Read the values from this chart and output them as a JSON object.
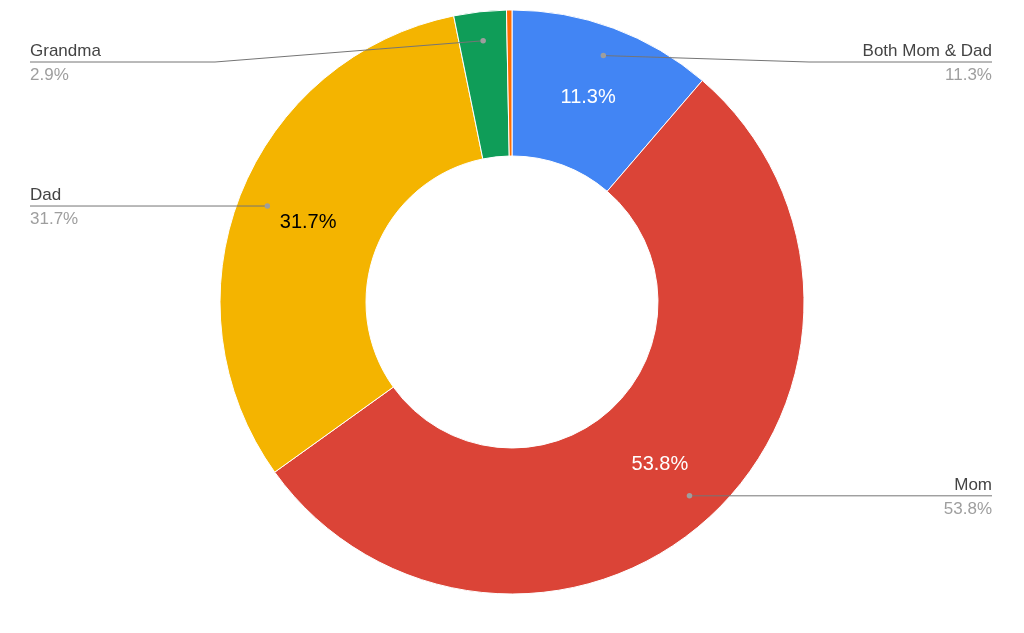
{
  "chart_data": {
    "type": "donut",
    "categories": [
      "Both Mom & Dad",
      "Mom",
      "Dad",
      "Grandma",
      null
    ],
    "values": [
      11.3,
      53.8,
      31.7,
      2.9,
      0.3
    ],
    "colors": [
      "#4285f4",
      "#db4437",
      "#f4b400",
      "#0f9d58",
      "#ff6d00"
    ],
    "value_labels": [
      "11.3%",
      "53.8%",
      "31.7%",
      "2.9%",
      null
    ]
  }
}
